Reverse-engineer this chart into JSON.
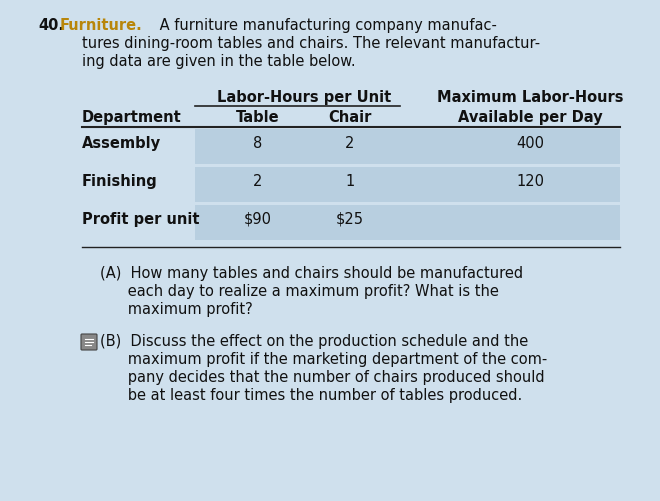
{
  "background_color": "#cfe0ed",
  "problem_number": "40.",
  "title_word": "Furniture.",
  "title_lines": [
    " A furniture manufacturing company manufac-",
    "tures dining-room tables and chairs. The relevant manufactur-",
    "ing data are given in the table below."
  ],
  "table_header_group": "Labor-Hours per Unit",
  "table_header_right": "Maximum Labor-Hours",
  "col_headers": [
    "Department",
    "Table",
    "Chair",
    "Available per Day"
  ],
  "rows": [
    [
      "Assembly",
      "8",
      "2",
      "400"
    ],
    [
      "Finishing",
      "2",
      "1",
      "120"
    ],
    [
      "Profit per unit",
      "$90",
      "$25",
      ""
    ]
  ],
  "q_a_lines": [
    "(A)  How many tables and chairs should be manufactured",
    "      each day to realize a maximum profit? What is the",
    "      maximum profit?"
  ],
  "q_b_lines": [
    "(B)  Discuss the effect on the production schedule and the",
    "      maximum profit if the marketing department of the com-",
    "      pany decides that the number of chairs produced should",
    "      be at least four times the number of tables produced."
  ],
  "title_color": "#b8860b",
  "text_color": "#111111",
  "shaded_row_color": "#b8cfe0",
  "line_color": "#222222",
  "font_size": 10.5,
  "small_font": 9.5
}
